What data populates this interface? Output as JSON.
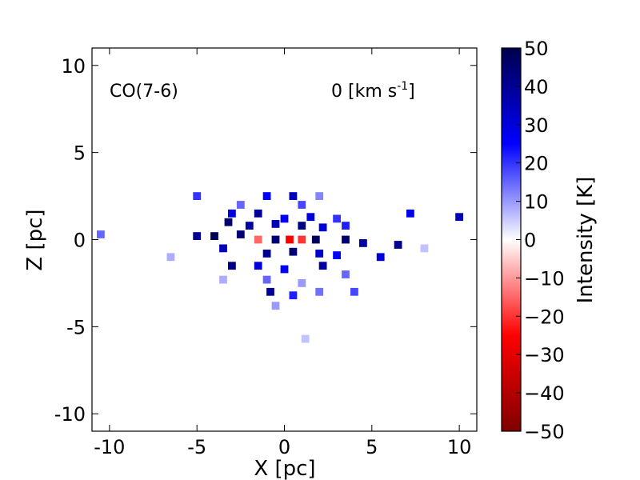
{
  "chart_data": {
    "type": "heatmap",
    "xlabel": "X [pc]",
    "ylabel": "Z [pc]",
    "xlim": [
      -11,
      11
    ],
    "ylim": [
      -11,
      11
    ],
    "x_ticks": [
      -10,
      -5,
      0,
      5,
      10
    ],
    "x_tick_labels": [
      "-10",
      "-5",
      "0",
      "5",
      "10"
    ],
    "y_ticks": [
      -10,
      -5,
      0,
      5,
      10
    ],
    "y_tick_labels": [
      "-10",
      "-5",
      "0",
      "5",
      "10"
    ],
    "grid": false,
    "annotations": {
      "species": "CO(7-6)",
      "velocity_prefix": "0 [km s",
      "velocity_sup": "-1",
      "velocity_suffix": "]"
    },
    "colorbar": {
      "label": "Intensity [K]",
      "range": [
        -50,
        50
      ],
      "ticks": [
        50,
        40,
        30,
        20,
        10,
        0,
        -10,
        -20,
        -30,
        -40,
        -50
      ],
      "tick_labels": [
        "50",
        "40",
        "30",
        "20",
        "10",
        "0",
        "−10",
        "−20",
        "−30",
        "−40",
        "−50"
      ],
      "colormap": "seismic_reversed",
      "colors": [
        "#800000",
        "#ff0000",
        "#ffffff",
        "#0000ff",
        "#00004d"
      ]
    },
    "cells": [
      {
        "x": -5,
        "y": 2.5,
        "v": 20
      },
      {
        "x": -2.5,
        "y": 2.0,
        "v": 15
      },
      {
        "x": -1.0,
        "y": 2.5,
        "v": 25
      },
      {
        "x": 0.5,
        "y": 2.5,
        "v": 35
      },
      {
        "x": 1.0,
        "y": 2.0,
        "v": 18
      },
      {
        "x": 2.0,
        "y": 2.5,
        "v": 12
      },
      {
        "x": -3.0,
        "y": 1.5,
        "v": 30
      },
      {
        "x": -1.5,
        "y": 1.5,
        "v": 40
      },
      {
        "x": 0.0,
        "y": 1.2,
        "v": 25
      },
      {
        "x": 1.5,
        "y": 1.3,
        "v": 30
      },
      {
        "x": 3.0,
        "y": 1.2,
        "v": 20
      },
      {
        "x": -3.2,
        "y": 1.0,
        "v": 45
      },
      {
        "x": -2.0,
        "y": 0.8,
        "v": 38
      },
      {
        "x": -0.5,
        "y": 0.9,
        "v": 35
      },
      {
        "x": 1.0,
        "y": 0.8,
        "v": 42
      },
      {
        "x": 2.2,
        "y": 0.7,
        "v": 30
      },
      {
        "x": 3.5,
        "y": 0.8,
        "v": 22
      },
      {
        "x": -5.0,
        "y": 0.2,
        "v": 40
      },
      {
        "x": -4.0,
        "y": 0.2,
        "v": 48
      },
      {
        "x": -2.5,
        "y": 0.3,
        "v": 45
      },
      {
        "x": -1.5,
        "y": 0.0,
        "v": -15
      },
      {
        "x": -0.5,
        "y": 0.0,
        "v": 45
      },
      {
        "x": 0.3,
        "y": 0.0,
        "v": -25
      },
      {
        "x": 1.0,
        "y": 0.0,
        "v": -20
      },
      {
        "x": 1.8,
        "y": 0.0,
        "v": 48
      },
      {
        "x": 3.5,
        "y": 0.0,
        "v": 45
      },
      {
        "x": 4.5,
        "y": -0.2,
        "v": 38
      },
      {
        "x": 6.5,
        "y": -0.3,
        "v": 40
      },
      {
        "x": -3.5,
        "y": -0.5,
        "v": 35
      },
      {
        "x": -1.0,
        "y": -0.8,
        "v": 40
      },
      {
        "x": 0.5,
        "y": -0.7,
        "v": 45
      },
      {
        "x": 2.0,
        "y": -0.8,
        "v": 32
      },
      {
        "x": 3.0,
        "y": -0.9,
        "v": 25
      },
      {
        "x": 5.5,
        "y": -1.0,
        "v": 30
      },
      {
        "x": -3.0,
        "y": -1.5,
        "v": 42
      },
      {
        "x": -1.5,
        "y": -1.5,
        "v": 30
      },
      {
        "x": 0.0,
        "y": -1.7,
        "v": 25
      },
      {
        "x": 2.2,
        "y": -1.5,
        "v": 38
      },
      {
        "x": 3.5,
        "y": -2.0,
        "v": 15
      },
      {
        "x": -3.5,
        "y": -2.3,
        "v": 8
      },
      {
        "x": -1.0,
        "y": -2.3,
        "v": 15
      },
      {
        "x": 1.0,
        "y": -2.5,
        "v": 10
      },
      {
        "x": -0.8,
        "y": -3.0,
        "v": 40
      },
      {
        "x": 0.5,
        "y": -3.2,
        "v": 22
      },
      {
        "x": 2.0,
        "y": -3.0,
        "v": 14
      },
      {
        "x": 4.0,
        "y": -3.0,
        "v": 18
      },
      {
        "x": -0.5,
        "y": -3.8,
        "v": 10
      },
      {
        "x": 7.2,
        "y": 1.5,
        "v": 28
      },
      {
        "x": 10.0,
        "y": 1.3,
        "v": 35
      },
      {
        "x": -10.5,
        "y": 0.3,
        "v": 15
      },
      {
        "x": -6.5,
        "y": -1.0,
        "v": 8
      },
      {
        "x": 8.0,
        "y": -0.5,
        "v": 6
      },
      {
        "x": 1.2,
        "y": -5.7,
        "v": 6
      }
    ]
  }
}
